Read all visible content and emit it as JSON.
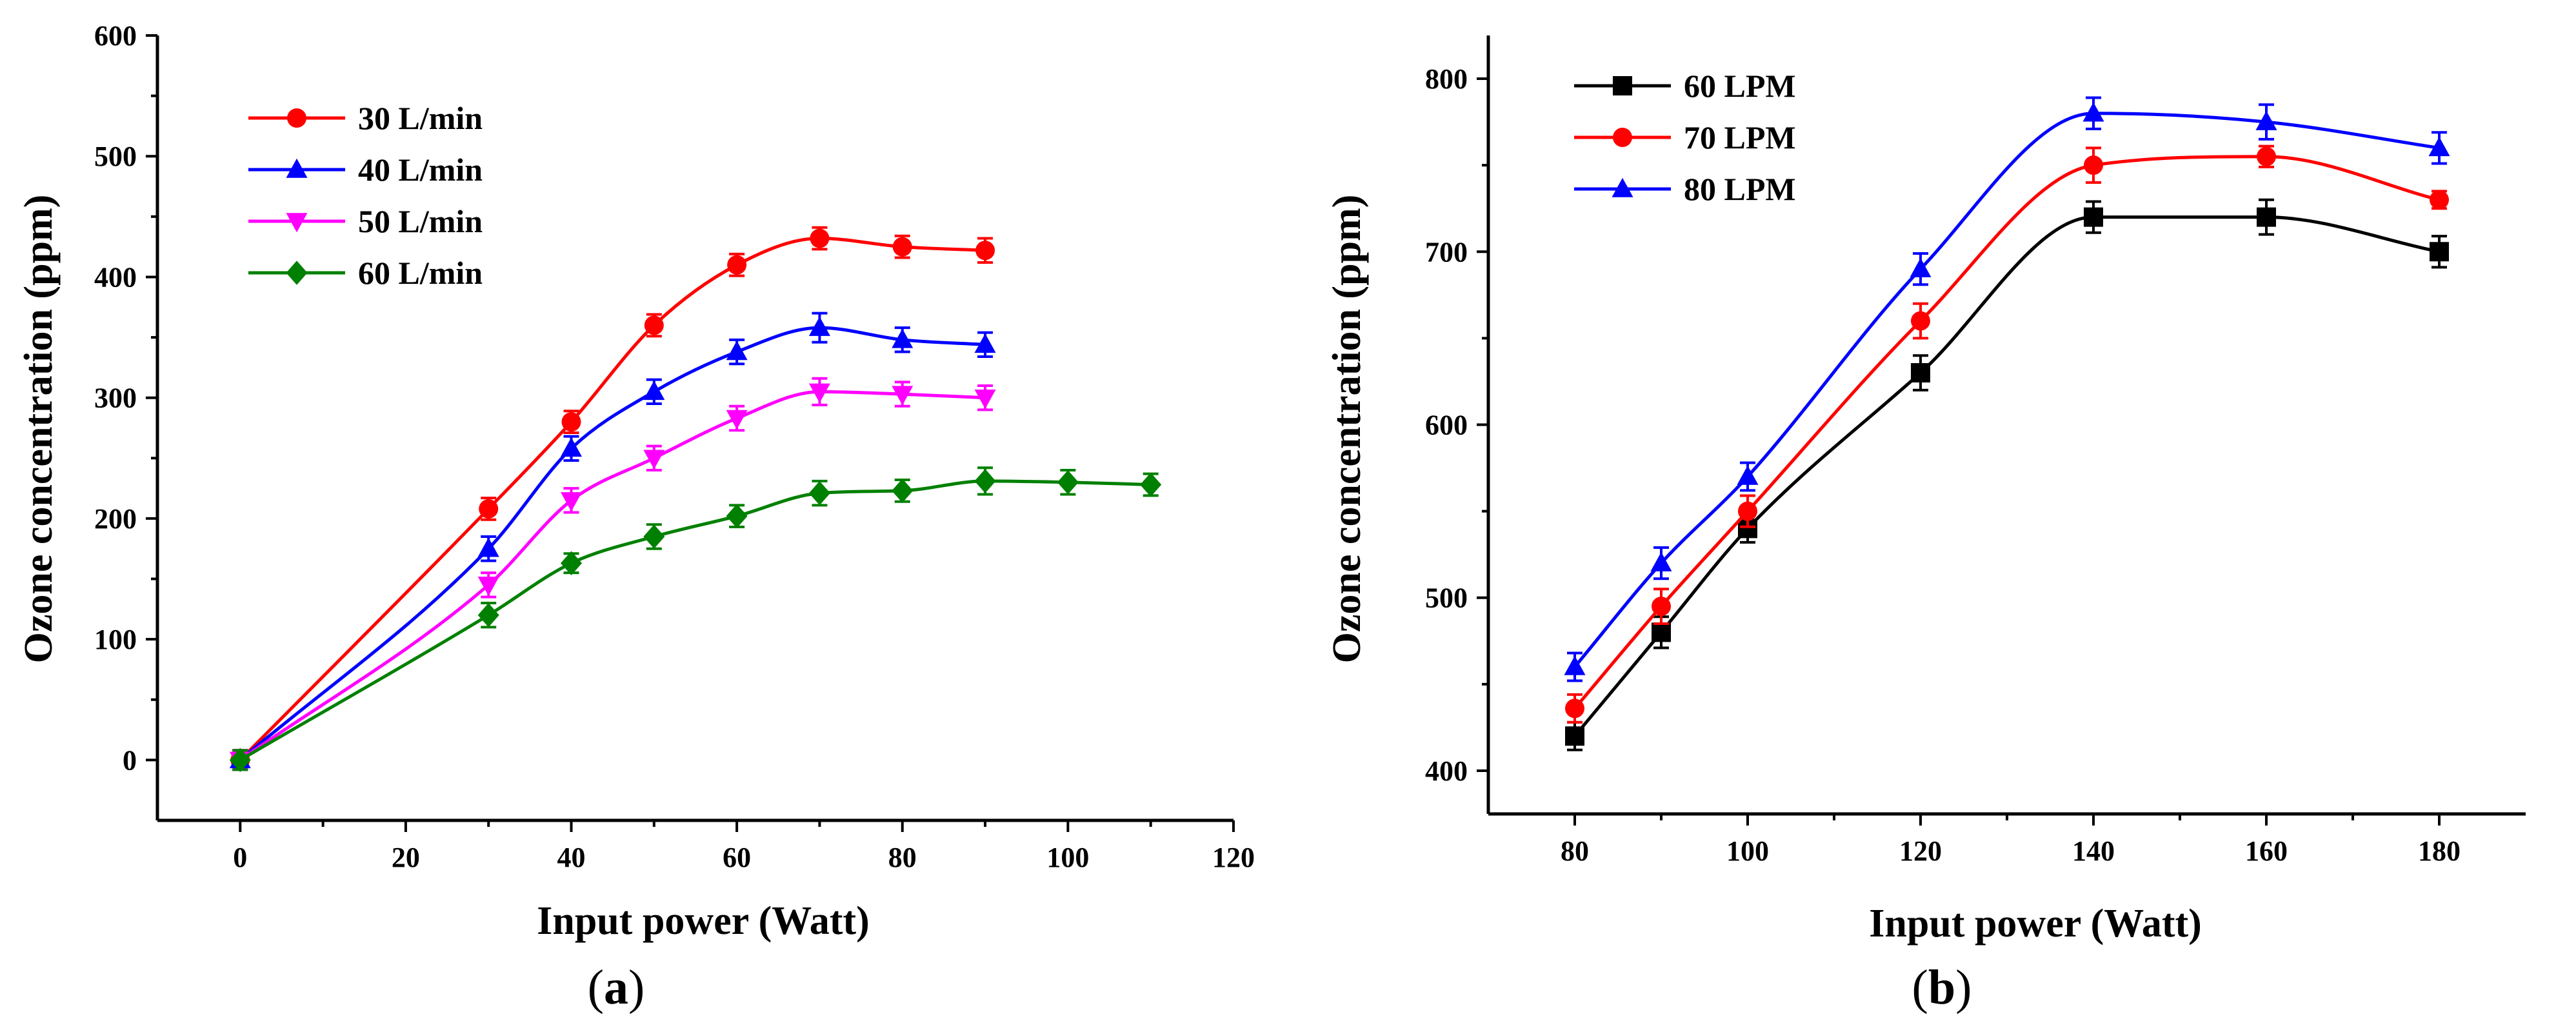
{
  "chart_data": [
    {
      "type": "line",
      "panel_label": {
        "open": "(",
        "letter": "a",
        "close": ")"
      },
      "xlabel": "Input power (Watt)",
      "ylabel": "Ozone concentration (ppm)",
      "xlim": [
        -10,
        120
      ],
      "ylim": [
        -50,
        600
      ],
      "xticks": [
        0,
        20,
        40,
        60,
        80,
        100,
        120
      ],
      "yticks": [
        0,
        100,
        200,
        300,
        400,
        500,
        600
      ],
      "xtick_labels": [
        "0",
        "20",
        "40",
        "60",
        "80",
        "100",
        "120"
      ],
      "ytick_labels": [
        "0",
        "100",
        "200",
        "300",
        "400",
        "500",
        "600"
      ],
      "legend_position": "top-left",
      "series": [
        {
          "name": "30 L/min",
          "color": "#ff0000",
          "marker": "circle",
          "x": [
            0,
            30,
            40,
            50,
            60,
            70,
            80,
            90
          ],
          "y": [
            0,
            208,
            280,
            360,
            410,
            432,
            425,
            422
          ],
          "err": [
            8,
            9,
            9,
            9,
            9,
            9,
            9,
            10
          ]
        },
        {
          "name": "40 L/min",
          "color": "#0000ff",
          "marker": "triangle-up",
          "x": [
            0,
            30,
            40,
            50,
            60,
            70,
            80,
            90
          ],
          "y": [
            0,
            175,
            258,
            305,
            338,
            358,
            348,
            344
          ],
          "err": [
            8,
            10,
            10,
            10,
            10,
            12,
            10,
            10
          ]
        },
        {
          "name": "50 L/min",
          "color": "#ff00ff",
          "marker": "triangle-down",
          "x": [
            0,
            30,
            40,
            50,
            60,
            70,
            80,
            90
          ],
          "y": [
            0,
            145,
            215,
            250,
            283,
            305,
            303,
            300
          ],
          "err": [
            8,
            10,
            10,
            10,
            10,
            11,
            10,
            10
          ]
        },
        {
          "name": "60 L/min",
          "color": "#008000",
          "marker": "diamond",
          "x": [
            0,
            30,
            40,
            50,
            60,
            70,
            80,
            90,
            100,
            110
          ],
          "y": [
            0,
            120,
            163,
            185,
            202,
            221,
            223,
            231,
            230,
            228
          ],
          "err": [
            8,
            10,
            8,
            10,
            9,
            10,
            9,
            11,
            10,
            9
          ]
        }
      ]
    },
    {
      "type": "line",
      "panel_label": {
        "open": "(",
        "letter": "b",
        "close": ")"
      },
      "xlabel": "Input power (Watt)",
      "ylabel": "Ozone concentration (ppm)",
      "xlim": [
        70,
        190
      ],
      "ylim": [
        375,
        825
      ],
      "xticks": [
        80,
        100,
        120,
        140,
        160,
        180
      ],
      "yticks": [
        400,
        500,
        600,
        700,
        800
      ],
      "xtick_labels": [
        "80",
        "100",
        "120",
        "140",
        "160",
        "180"
      ],
      "ytick_labels": [
        "400",
        "500",
        "600",
        "700",
        "800"
      ],
      "legend_position": "top-left",
      "series": [
        {
          "name": "60 LPM",
          "color": "#000000",
          "marker": "square",
          "x": [
            80,
            90,
            100,
            120,
            140,
            160,
            180
          ],
          "y": [
            420,
            480,
            540,
            630,
            720,
            720,
            700
          ],
          "err": [
            8,
            9,
            8,
            10,
            9,
            10,
            9
          ]
        },
        {
          "name": "70 LPM",
          "color": "#ff0000",
          "marker": "circle",
          "x": [
            80,
            90,
            100,
            120,
            140,
            160,
            180
          ],
          "y": [
            436,
            495,
            550,
            660,
            750,
            755,
            730
          ],
          "err": [
            8,
            10,
            9,
            10,
            10,
            6,
            5
          ]
        },
        {
          "name": "80 LPM",
          "color": "#0000ff",
          "marker": "triangle-up",
          "x": [
            80,
            90,
            100,
            120,
            140,
            160,
            180
          ],
          "y": [
            460,
            520,
            570,
            690,
            780,
            775,
            760
          ],
          "err": [
            8,
            9,
            8,
            9,
            9,
            10,
            9
          ]
        }
      ]
    }
  ]
}
